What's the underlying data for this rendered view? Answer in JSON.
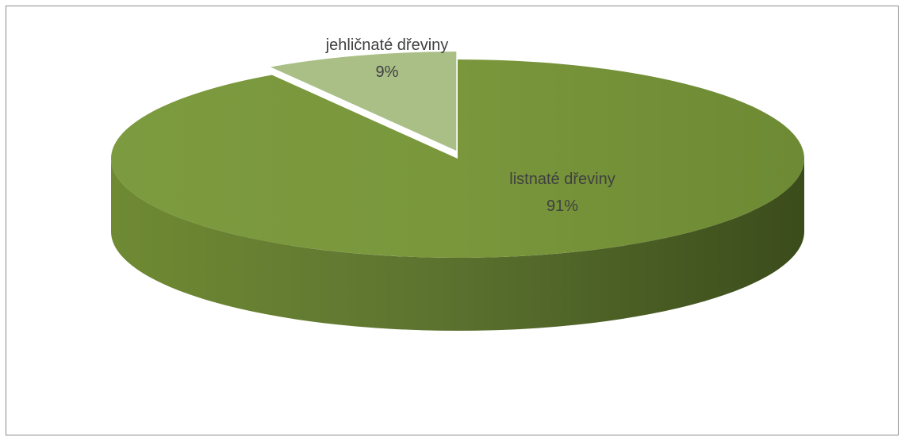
{
  "chart_data": {
    "type": "pie",
    "style": "3d",
    "title": "",
    "slices": [
      {
        "label": "listnaté dřeviny",
        "value": 91,
        "display": "91%",
        "color": "#76923c"
      },
      {
        "label": "jehličnaté dřeviny",
        "value": 9,
        "display": "9%",
        "color": "#a9bf86"
      }
    ],
    "legend": "none"
  }
}
